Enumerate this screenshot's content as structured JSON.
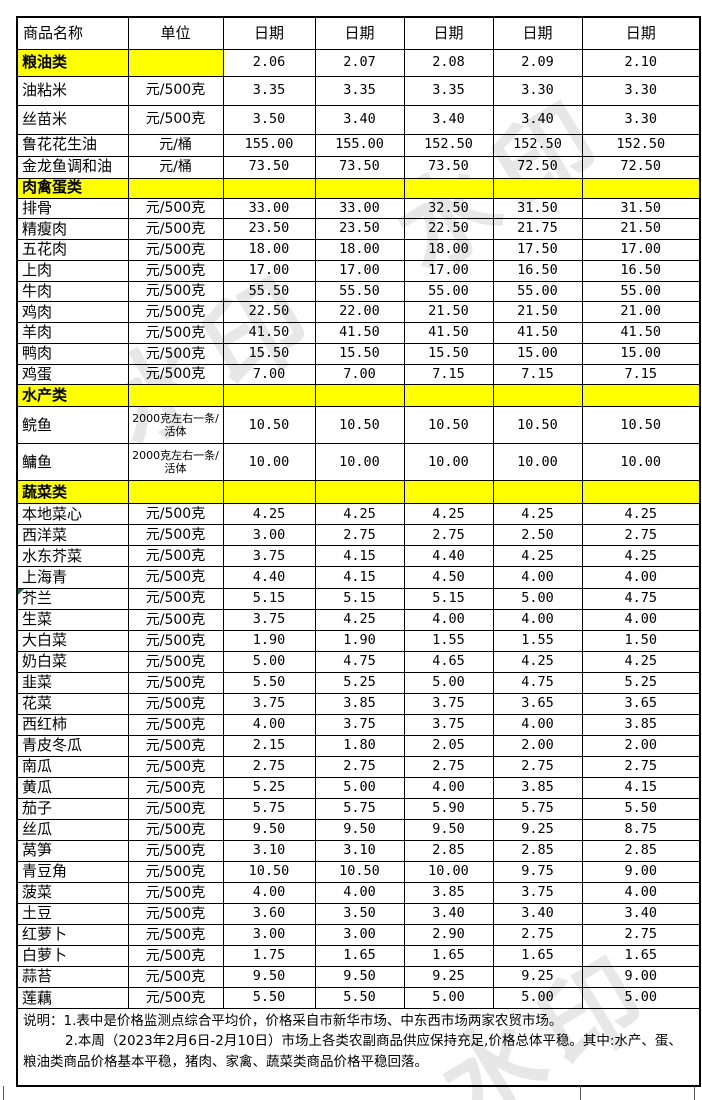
{
  "table": {
    "headers": [
      "商品名称",
      "单位",
      "日期",
      "日期",
      "日期",
      "日期",
      "日期"
    ],
    "rows": [
      {
        "kind": "section",
        "name": "粮油类",
        "unit": "",
        "h": "s27",
        "values": [
          "2.06",
          "2.07",
          "2.08",
          "2.09",
          "2.10"
        ]
      },
      {
        "kind": "item",
        "name": "油粘米",
        "unit": "元/500克",
        "h": "r29",
        "values": [
          "3.35",
          "3.35",
          "3.35",
          "3.30",
          "3.30"
        ]
      },
      {
        "kind": "item",
        "name": "丝苗米",
        "unit": "元/500克",
        "h": "r29",
        "values": [
          "3.50",
          "3.40",
          "3.40",
          "3.40",
          "3.30"
        ]
      },
      {
        "kind": "item",
        "name": "鲁花花生油",
        "unit": "元/桶",
        "h": "r22",
        "values": [
          "155.00",
          "155.00",
          "152.50",
          "152.50",
          "152.50"
        ]
      },
      {
        "kind": "item",
        "name": "金龙鱼调和油",
        "unit": "元/桶",
        "h": "r22",
        "values": [
          "73.50",
          "73.50",
          "73.50",
          "72.50",
          "72.50"
        ]
      },
      {
        "kind": "section",
        "name": "肉禽蛋类",
        "unit": "",
        "h": "s20",
        "values": [
          "",
          "",
          "",
          "",
          ""
        ]
      },
      {
        "kind": "item",
        "name": "排骨",
        "unit": "元/500克",
        "h": "m",
        "values": [
          "33.00",
          "33.00",
          "32.50",
          "31.50",
          "31.50"
        ]
      },
      {
        "kind": "item",
        "name": "精瘦肉",
        "unit": "元/500克",
        "h": "m",
        "values": [
          "23.50",
          "23.50",
          "22.50",
          "21.75",
          "21.50"
        ]
      },
      {
        "kind": "item",
        "name": "五花肉",
        "unit": "元/500克",
        "h": "m",
        "values": [
          "18.00",
          "18.00",
          "18.00",
          "17.50",
          "17.00"
        ]
      },
      {
        "kind": "item",
        "name": "上肉",
        "unit": "元/500克",
        "h": "m",
        "values": [
          "17.00",
          "17.00",
          "17.00",
          "16.50",
          "16.50"
        ]
      },
      {
        "kind": "item",
        "name": "牛肉",
        "unit": "元/500克",
        "h": "m",
        "values": [
          "55.50",
          "55.50",
          "55.00",
          "55.00",
          "55.00"
        ]
      },
      {
        "kind": "item",
        "name": "鸡肉",
        "unit": "元/500克",
        "h": "m",
        "values": [
          "22.50",
          "22.00",
          "21.50",
          "21.50",
          "21.00"
        ]
      },
      {
        "kind": "item",
        "name": "羊肉",
        "unit": "元/500克",
        "h": "m",
        "values": [
          "41.50",
          "41.50",
          "41.50",
          "41.50",
          "41.50"
        ]
      },
      {
        "kind": "item",
        "name": "鸭肉",
        "unit": "元/500克",
        "h": "m",
        "values": [
          "15.50",
          "15.50",
          "15.50",
          "15.00",
          "15.00"
        ]
      },
      {
        "kind": "item",
        "name": "鸡蛋",
        "unit": "元/500克",
        "h": "m",
        "values": [
          "7.00",
          "7.00",
          "7.15",
          "7.15",
          "7.15"
        ]
      },
      {
        "kind": "section",
        "name": "水产类",
        "unit": "",
        "h": "s22",
        "values": [
          "",
          "",
          "",
          "",
          ""
        ]
      },
      {
        "kind": "item",
        "name": "鲩鱼",
        "unit": "2000克左右一条/活体",
        "unit_small": true,
        "h": "f",
        "values": [
          "10.50",
          "10.50",
          "10.50",
          "10.50",
          "10.50"
        ]
      },
      {
        "kind": "item",
        "name": "鳙鱼",
        "unit": "2000克左右一条/活体",
        "unit_small": true,
        "h": "f",
        "values": [
          "10.00",
          "10.00",
          "10.00",
          "10.00",
          "10.00"
        ]
      },
      {
        "kind": "section",
        "name": "蔬菜类",
        "unit": "",
        "h": "s23",
        "values": [
          "",
          "",
          "",
          "",
          ""
        ]
      },
      {
        "kind": "item",
        "name": "本地菜心",
        "unit": "元/500克",
        "h": "v",
        "values": [
          "4.25",
          "4.25",
          "4.25",
          "4.25",
          "4.25"
        ]
      },
      {
        "kind": "item",
        "name": "西洋菜",
        "unit": "元/500克",
        "h": "v",
        "values": [
          "3.00",
          "2.75",
          "2.75",
          "2.50",
          "2.75"
        ]
      },
      {
        "kind": "item",
        "name": "水东芥菜",
        "unit": "元/500克",
        "h": "v",
        "values": [
          "3.75",
          "4.15",
          "4.40",
          "4.25",
          "4.25"
        ]
      },
      {
        "kind": "item",
        "name": "上海青",
        "unit": "元/500克",
        "h": "v",
        "values": [
          "4.40",
          "4.15",
          "4.50",
          "4.00",
          "4.00"
        ]
      },
      {
        "kind": "item",
        "name": "芥兰",
        "unit": "元/500克",
        "h": "v",
        "marker": true,
        "values": [
          "5.15",
          "5.15",
          "5.15",
          "5.00",
          "4.75"
        ]
      },
      {
        "kind": "item",
        "name": "生菜",
        "unit": "元/500克",
        "h": "v",
        "values": [
          "3.75",
          "4.25",
          "4.00",
          "4.00",
          "4.00"
        ]
      },
      {
        "kind": "item",
        "name": "大白菜",
        "unit": "元/500克",
        "h": "v",
        "values": [
          "1.90",
          "1.90",
          "1.55",
          "1.55",
          "1.50"
        ]
      },
      {
        "kind": "item",
        "name": "奶白菜",
        "unit": "元/500克",
        "h": "v",
        "values": [
          "5.00",
          "4.75",
          "4.65",
          "4.25",
          "4.25"
        ]
      },
      {
        "kind": "item",
        "name": "韭菜",
        "unit": "元/500克",
        "h": "v",
        "values": [
          "5.50",
          "5.25",
          "5.00",
          "4.75",
          "5.25"
        ]
      },
      {
        "kind": "item",
        "name": "花菜",
        "unit": "元/500克",
        "h": "v",
        "values": [
          "3.75",
          "3.85",
          "3.75",
          "3.65",
          "3.65"
        ]
      },
      {
        "kind": "item",
        "name": "西红柿",
        "unit": "元/500克",
        "h": "v",
        "values": [
          "4.00",
          "3.75",
          "3.75",
          "4.00",
          "3.85"
        ]
      },
      {
        "kind": "item",
        "name": "青皮冬瓜",
        "unit": "元/500克",
        "h": "v",
        "values": [
          "2.15",
          "1.80",
          "2.05",
          "2.00",
          "2.00"
        ]
      },
      {
        "kind": "item",
        "name": "南瓜",
        "unit": "元/500克",
        "h": "v",
        "values": [
          "2.75",
          "2.75",
          "2.75",
          "2.75",
          "2.75"
        ]
      },
      {
        "kind": "item",
        "name": "黄瓜",
        "unit": "元/500克",
        "h": "v",
        "values": [
          "5.25",
          "5.00",
          "4.00",
          "3.85",
          "4.15"
        ]
      },
      {
        "kind": "item",
        "name": "茄子",
        "unit": "元/500克",
        "h": "v",
        "values": [
          "5.75",
          "5.75",
          "5.90",
          "5.75",
          "5.50"
        ]
      },
      {
        "kind": "item",
        "name": "丝瓜",
        "unit": "元/500克",
        "h": "v",
        "values": [
          "9.50",
          "9.50",
          "9.50",
          "9.25",
          "8.75"
        ]
      },
      {
        "kind": "item",
        "name": "莴笋",
        "unit": "元/500克",
        "h": "v",
        "values": [
          "3.10",
          "3.10",
          "2.85",
          "2.85",
          "2.85"
        ]
      },
      {
        "kind": "item",
        "name": "青豆角",
        "unit": "元/500克",
        "h": "v",
        "values": [
          "10.50",
          "10.50",
          "10.00",
          "9.75",
          "9.00"
        ]
      },
      {
        "kind": "item",
        "name": "菠菜",
        "unit": "元/500克",
        "h": "v",
        "values": [
          "4.00",
          "4.00",
          "3.85",
          "3.75",
          "4.00"
        ]
      },
      {
        "kind": "item",
        "name": "土豆",
        "unit": "元/500克",
        "h": "v",
        "values": [
          "3.60",
          "3.50",
          "3.40",
          "3.40",
          "3.40"
        ]
      },
      {
        "kind": "item",
        "name": "红萝卜",
        "unit": "元/500克",
        "h": "v",
        "values": [
          "3.00",
          "3.00",
          "2.90",
          "2.75",
          "2.75"
        ]
      },
      {
        "kind": "item",
        "name": "白萝卜",
        "unit": "元/500克",
        "h": "v",
        "values": [
          "1.75",
          "1.65",
          "1.65",
          "1.65",
          "1.65"
        ]
      },
      {
        "kind": "item",
        "name": "蒜苔",
        "unit": "元/500克",
        "h": "v",
        "values": [
          "9.50",
          "9.50",
          "9.25",
          "9.25",
          "9.00"
        ]
      },
      {
        "kind": "item",
        "name": "莲藕",
        "unit": "元/500克",
        "h": "v",
        "values": [
          "5.50",
          "5.50",
          "5.00",
          "5.00",
          "5.00"
        ]
      }
    ]
  },
  "notes": {
    "line1": "说明：1.表中是价格监测点综合平均价，价格采自市新华市场、中东西市场两家农贸市场。",
    "line2": "2.本周（2023年2月6日-2月10日）市场上各类农副商品供应保持充足,价格总体平稳。其中:水产、蛋、粮油类商品价格基本平稳，猪肉、家禽、蔬菜类商品价格平稳回落。"
  },
  "watermark": {
    "text": "水印"
  },
  "colors": {
    "section_bg": "#FFFF00",
    "border": "#000000",
    "corner_marker": "#217346"
  }
}
